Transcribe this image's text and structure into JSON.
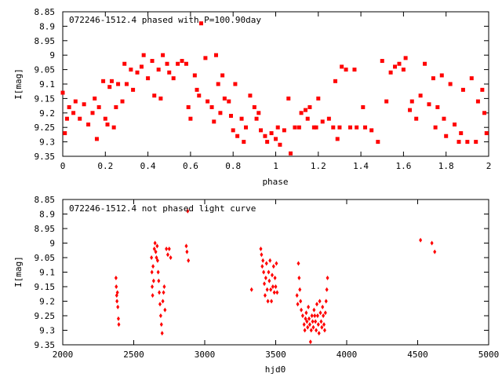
{
  "chart_data": [
    {
      "type": "scatter",
      "title": "072246-1512.4 phased with P=100.90day",
      "xlabel": "phase",
      "ylabel": "I[mag]",
      "xlim": [
        0,
        2
      ],
      "ylim": [
        8.85,
        9.35
      ],
      "y_inverted": true,
      "xticks": [
        "0",
        "0.2",
        "0.4",
        "0.6",
        "0.8",
        "1",
        "1.2",
        "1.4",
        "1.6",
        "1.8",
        "2"
      ],
      "yticks": [
        "8.85",
        "8.9",
        "8.95",
        "9",
        "9.05",
        "9.1",
        "9.15",
        "9.2",
        "9.25",
        "9.3",
        "9.35"
      ],
      "grid": false,
      "marker_color": "#ff0000",
      "series": [
        {
          "points": [
            [
              0.0,
              9.13
            ],
            [
              0.01,
              9.27
            ],
            [
              0.02,
              9.22
            ],
            [
              0.03,
              9.18
            ],
            [
              0.05,
              9.2
            ],
            [
              0.06,
              9.16
            ],
            [
              0.08,
              9.22
            ],
            [
              0.1,
              9.17
            ],
            [
              0.12,
              9.24
            ],
            [
              0.14,
              9.2
            ],
            [
              0.15,
              9.15
            ],
            [
              0.16,
              9.29
            ],
            [
              0.17,
              9.18
            ],
            [
              0.19,
              9.09
            ],
            [
              0.2,
              9.22
            ],
            [
              0.21,
              9.24
            ],
            [
              0.22,
              9.11
            ],
            [
              0.23,
              9.09
            ],
            [
              0.24,
              9.25
            ],
            [
              0.25,
              9.18
            ],
            [
              0.26,
              9.1
            ],
            [
              0.28,
              9.16
            ],
            [
              0.29,
              9.03
            ],
            [
              0.3,
              9.1
            ],
            [
              0.32,
              9.05
            ],
            [
              0.33,
              9.12
            ],
            [
              0.35,
              9.06
            ],
            [
              0.37,
              9.04
            ],
            [
              0.38,
              9.0
            ],
            [
              0.4,
              9.08
            ],
            [
              0.42,
              9.02
            ],
            [
              0.43,
              9.14
            ],
            [
              0.45,
              9.05
            ],
            [
              0.46,
              9.15
            ],
            [
              0.47,
              9.0
            ],
            [
              0.49,
              9.03
            ],
            [
              0.5,
              9.06
            ],
            [
              0.52,
              9.08
            ],
            [
              0.54,
              9.03
            ],
            [
              0.56,
              9.02
            ],
            [
              0.58,
              9.03
            ],
            [
              0.59,
              9.18
            ],
            [
              0.6,
              9.22
            ],
            [
              0.62,
              9.07
            ],
            [
              0.63,
              9.12
            ],
            [
              0.64,
              9.14
            ],
            [
              0.65,
              8.89
            ],
            [
              0.67,
              9.01
            ],
            [
              0.68,
              9.16
            ],
            [
              0.7,
              9.18
            ],
            [
              0.71,
              9.23
            ],
            [
              0.72,
              9.0
            ],
            [
              0.73,
              9.1
            ],
            [
              0.74,
              9.2
            ],
            [
              0.75,
              9.07
            ],
            [
              0.76,
              9.15
            ],
            [
              0.78,
              9.16
            ],
            [
              0.79,
              9.21
            ],
            [
              0.8,
              9.26
            ],
            [
              0.81,
              9.1
            ],
            [
              0.82,
              9.28
            ],
            [
              0.84,
              9.22
            ],
            [
              0.85,
              9.3
            ],
            [
              0.86,
              9.25
            ],
            [
              0.88,
              9.14
            ],
            [
              0.9,
              9.18
            ],
            [
              0.91,
              9.22
            ],
            [
              0.92,
              9.2
            ],
            [
              0.93,
              9.26
            ],
            [
              0.95,
              9.28
            ],
            [
              0.96,
              9.3
            ],
            [
              0.98,
              9.27
            ],
            [
              1.0,
              9.29
            ],
            [
              1.01,
              9.25
            ],
            [
              1.02,
              9.31
            ],
            [
              1.04,
              9.26
            ],
            [
              1.06,
              9.15
            ],
            [
              1.07,
              9.34
            ],
            [
              1.09,
              9.25
            ],
            [
              1.11,
              9.25
            ],
            [
              1.12,
              9.2
            ],
            [
              1.14,
              9.19
            ],
            [
              1.15,
              9.22
            ],
            [
              1.16,
              9.18
            ],
            [
              1.18,
              9.25
            ],
            [
              1.19,
              9.25
            ],
            [
              1.2,
              9.15
            ],
            [
              1.22,
              9.23
            ],
            [
              1.25,
              9.22
            ],
            [
              1.27,
              9.25
            ],
            [
              1.28,
              9.09
            ],
            [
              1.29,
              9.29
            ],
            [
              1.3,
              9.25
            ],
            [
              1.31,
              9.04
            ],
            [
              1.33,
              9.05
            ],
            [
              1.35,
              9.25
            ],
            [
              1.37,
              9.05
            ],
            [
              1.38,
              9.25
            ],
            [
              1.41,
              9.18
            ],
            [
              1.42,
              9.25
            ],
            [
              1.45,
              9.26
            ],
            [
              1.48,
              9.3
            ],
            [
              1.5,
              9.02
            ],
            [
              1.52,
              9.16
            ],
            [
              1.54,
              9.06
            ],
            [
              1.56,
              9.04
            ],
            [
              1.58,
              9.03
            ],
            [
              1.6,
              9.05
            ],
            [
              1.61,
              9.01
            ],
            [
              1.63,
              9.19
            ],
            [
              1.64,
              9.16
            ],
            [
              1.66,
              9.22
            ],
            [
              1.68,
              9.14
            ],
            [
              1.7,
              9.03
            ],
            [
              1.72,
              9.17
            ],
            [
              1.74,
              9.08
            ],
            [
              1.75,
              9.25
            ],
            [
              1.76,
              9.18
            ],
            [
              1.78,
              9.07
            ],
            [
              1.79,
              9.22
            ],
            [
              1.8,
              9.28
            ],
            [
              1.82,
              9.1
            ],
            [
              1.84,
              9.24
            ],
            [
              1.86,
              9.3
            ],
            [
              1.87,
              9.27
            ],
            [
              1.88,
              9.12
            ],
            [
              1.9,
              9.3
            ],
            [
              1.92,
              9.08
            ],
            [
              1.94,
              9.3
            ],
            [
              1.95,
              9.16
            ],
            [
              1.97,
              9.12
            ],
            [
              1.98,
              9.2
            ],
            [
              1.99,
              9.27
            ]
          ]
        }
      ]
    },
    {
      "type": "scatter",
      "title": "072246-1512.4 not phased light curve",
      "xlabel": "hjd0",
      "ylabel": "I[mag]",
      "xlim": [
        2000,
        5000
      ],
      "ylim": [
        8.85,
        9.35
      ],
      "y_inverted": true,
      "xticks": [
        "2000",
        "2500",
        "3000",
        "3500",
        "4000",
        "4500",
        "5000"
      ],
      "yticks": [
        "8.85",
        "8.9",
        "8.95",
        "9",
        "9.05",
        "9.1",
        "9.15",
        "9.2",
        "9.25",
        "9.3",
        "9.35"
      ],
      "grid": false,
      "marker_color": "#ff0000",
      "series": [
        {
          "points": [
            [
              2375,
              9.12
            ],
            [
              2377,
              9.15
            ],
            [
              2380,
              9.18
            ],
            [
              2382,
              9.2
            ],
            [
              2385,
              9.17
            ],
            [
              2388,
              9.22
            ],
            [
              2392,
              9.26
            ],
            [
              2395,
              9.28
            ],
            [
              2625,
              9.05
            ],
            [
              2628,
              9.1
            ],
            [
              2630,
              9.15
            ],
            [
              2633,
              9.18
            ],
            [
              2636,
              9.08
            ],
            [
              2640,
              9.13
            ],
            [
              2645,
              9.02
            ],
            [
              2650,
              9.0
            ],
            [
              2655,
              9.03
            ],
            [
              2660,
              9.05
            ],
            [
              2665,
              9.01
            ],
            [
              2668,
              9.06
            ],
            [
              2672,
              9.1
            ],
            [
              2676,
              9.13
            ],
            [
              2680,
              9.17
            ],
            [
              2685,
              9.21
            ],
            [
              2690,
              9.25
            ],
            [
              2695,
              9.28
            ],
            [
              2700,
              9.31
            ],
            [
              2705,
              9.2
            ],
            [
              2710,
              9.17
            ],
            [
              2715,
              9.15
            ],
            [
              2720,
              9.23
            ],
            [
              2730,
              9.02
            ],
            [
              2740,
              9.04
            ],
            [
              2750,
              9.02
            ],
            [
              2760,
              9.05
            ],
            [
              2870,
              9.01
            ],
            [
              2875,
              9.03
            ],
            [
              2880,
              8.89
            ],
            [
              2885,
              9.06
            ],
            [
              3330,
              9.16
            ],
            [
              3395,
              9.02
            ],
            [
              3400,
              9.04
            ],
            [
              3405,
              9.08
            ],
            [
              3410,
              9.06
            ],
            [
              3415,
              9.1
            ],
            [
              3420,
              9.14
            ],
            [
              3425,
              9.18
            ],
            [
              3430,
              9.12
            ],
            [
              3435,
              9.07
            ],
            [
              3440,
              9.16
            ],
            [
              3445,
              9.2
            ],
            [
              3450,
              9.1
            ],
            [
              3455,
              9.13
            ],
            [
              3460,
              9.06
            ],
            [
              3465,
              9.16
            ],
            [
              3470,
              9.2
            ],
            [
              3475,
              9.11
            ],
            [
              3480,
              9.15
            ],
            [
              3485,
              9.08
            ],
            [
              3490,
              9.17
            ],
            [
              3495,
              9.12
            ],
            [
              3500,
              9.15
            ],
            [
              3505,
              9.07
            ],
            [
              3510,
              9.17
            ],
            [
              3650,
              9.18
            ],
            [
              3655,
              9.21
            ],
            [
              3660,
              9.07
            ],
            [
              3665,
              9.12
            ],
            [
              3670,
              9.16
            ],
            [
              3675,
              9.2
            ],
            [
              3680,
              9.23
            ],
            [
              3690,
              9.25
            ],
            [
              3700,
              9.28
            ],
            [
              3705,
              9.3
            ],
            [
              3710,
              9.26
            ],
            [
              3715,
              9.24
            ],
            [
              3720,
              9.27
            ],
            [
              3725,
              9.29
            ],
            [
              3730,
              9.22
            ],
            [
              3735,
              9.26
            ],
            [
              3740,
              9.28
            ],
            [
              3745,
              9.34
            ],
            [
              3750,
              9.3
            ],
            [
              3755,
              9.25
            ],
            [
              3760,
              9.27
            ],
            [
              3765,
              9.29
            ],
            [
              3770,
              9.23
            ],
            [
              3775,
              9.25
            ],
            [
              3780,
              9.27
            ],
            [
              3785,
              9.3
            ],
            [
              3790,
              9.21
            ],
            [
              3795,
              9.25
            ],
            [
              3800,
              9.28
            ],
            [
              3805,
              9.31
            ],
            [
              3810,
              9.2
            ],
            [
              3815,
              9.24
            ],
            [
              3820,
              9.27
            ],
            [
              3825,
              9.29
            ],
            [
              3830,
              9.22
            ],
            [
              3835,
              9.25
            ],
            [
              3840,
              9.28
            ],
            [
              3845,
              9.3
            ],
            [
              3850,
              9.24
            ],
            [
              3855,
              9.2
            ],
            [
              3860,
              9.16
            ],
            [
              3865,
              9.12
            ],
            [
              4520,
              8.99
            ],
            [
              4600,
              9.0
            ],
            [
              4620,
              9.03
            ]
          ]
        }
      ]
    }
  ]
}
